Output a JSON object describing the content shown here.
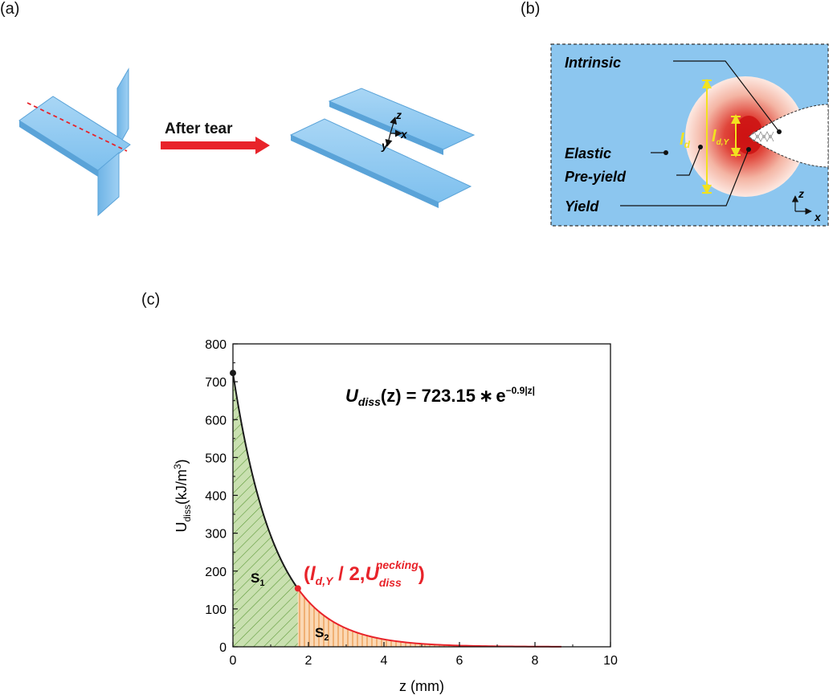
{
  "panels": {
    "a": {
      "label": "(a)",
      "arrow_text": "After tear",
      "axes": {
        "z": "z",
        "x": "x",
        "y": "y"
      }
    },
    "b": {
      "label": "(b)",
      "labels": {
        "intrinsic": "Intrinsic",
        "elastic": "Elastic",
        "pre_yield": "Pre-yield",
        "yield": "Yield"
      },
      "dims": {
        "ld_main": "l",
        "ld_sub": "d",
        "ldy_main": "l",
        "ldy_sub": "d,Y"
      },
      "axes": {
        "z": "z",
        "x": "x"
      }
    },
    "c": {
      "label": "(c)"
    }
  },
  "chart_data": {
    "type": "area",
    "title": "",
    "xlabel": "z (mm)",
    "ylabel_main": "U",
    "ylabel_sub": "diss",
    "ylabel_unit": "(kJ/m",
    "ylabel_sup": "3",
    "ylabel_close": ")",
    "xlim": [
      0,
      10
    ],
    "ylim": [
      0,
      800
    ],
    "xticks": [
      "0",
      "2",
      "4",
      "6",
      "8",
      "10"
    ],
    "yticks": [
      "0",
      "100",
      "200",
      "300",
      "400",
      "500",
      "600",
      "700",
      "800"
    ],
    "equation": {
      "lhs_main": "U",
      "lhs_sub": "diss",
      "lhs_arg": "(z)",
      "eq": " = 723.15",
      "op": "∗",
      "base": "e",
      "exp": "−0.9|z|"
    },
    "model": {
      "a": 723.15,
      "k": 0.9
    },
    "curve_x_end": 8.7,
    "split_point": {
      "x": 1.72,
      "y": 154
    },
    "start_point": {
      "x": 0,
      "y": 723.15
    },
    "regions": [
      {
        "name": "S",
        "sub": "1",
        "from": 0,
        "to": 1.72,
        "color": "#c9e0b0",
        "hatch": "#5f9b3a"
      },
      {
        "name": "S",
        "sub": "2",
        "from": 1.72,
        "to": 8.7,
        "color": "#fbd8b4",
        "hatch": "#e8964a"
      }
    ],
    "annotation": {
      "open": "(",
      "l_main": "l",
      "l_sub": "d,Y",
      "mid": " / 2,",
      "u_main": "U",
      "u_sub": "diss",
      "u_sup": "necking",
      "close": ")",
      "color": "#e8232a"
    },
    "colors": {
      "curve_s1": "#1a1a1a",
      "curve_s2": "#e8232a",
      "point_start": "#1a1a1a",
      "point_split": "#e8232a"
    }
  }
}
